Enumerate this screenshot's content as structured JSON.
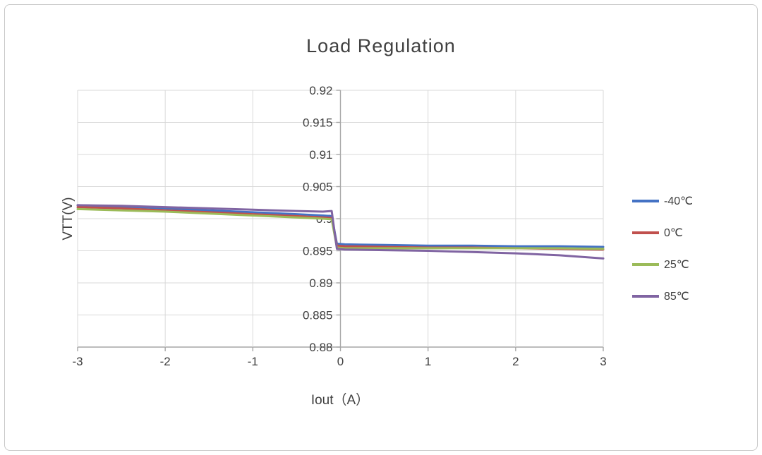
{
  "chart_data": {
    "type": "line",
    "title": "Load Regulation",
    "xlabel": "Iout（A）",
    "ylabel": "VTT(V)",
    "xlim": [
      -3,
      3
    ],
    "ylim": [
      0.88,
      0.92
    ],
    "xtick_values": [
      -3,
      -2,
      -1,
      0,
      1,
      2,
      3
    ],
    "xtick_labels": [
      "-3",
      "-2",
      "-1",
      "0",
      "1",
      "2",
      "3"
    ],
    "ytick_values": [
      0.92,
      0.915,
      0.91,
      0.905,
      0.9,
      0.895,
      0.89,
      0.885,
      0.88
    ],
    "ytick_labels": [
      "0.92",
      "0.915",
      "0.91",
      "0.905",
      "0.9",
      "0.895",
      "0.89",
      "0.885",
      "0.88"
    ],
    "grid": true,
    "legend_position": "right",
    "colors": {
      "gridline": "#d9d9d9",
      "axis": "#a6a6a6",
      "text": "#404040"
    },
    "series": [
      {
        "name": "-40℃",
        "color": "#4472c4",
        "x": [
          -3,
          -2.5,
          -2,
          -1.5,
          -1,
          -0.5,
          -0.2,
          -0.1,
          -0.04,
          0.05,
          0.5,
          1,
          1.5,
          2,
          2.5,
          3
        ],
        "y": [
          0.9021,
          0.9019,
          0.9016,
          0.9013,
          0.901,
          0.9007,
          0.9005,
          0.9004,
          0.8961,
          0.896,
          0.8959,
          0.8958,
          0.8958,
          0.8957,
          0.8957,
          0.8956
        ]
      },
      {
        "name": "0℃",
        "color": "#c0504d",
        "x": [
          -3,
          -2.5,
          -2,
          -1.5,
          -1,
          -0.5,
          -0.2,
          -0.1,
          -0.04,
          0.05,
          0.5,
          1,
          1.5,
          2,
          2.5,
          3
        ],
        "y": [
          0.9018,
          0.9016,
          0.9013,
          0.901,
          0.9007,
          0.9004,
          0.9002,
          0.9001,
          0.8958,
          0.8957,
          0.8956,
          0.8955,
          0.8955,
          0.8954,
          0.8953,
          0.8952
        ]
      },
      {
        "name": "25℃",
        "color": "#9bbb59",
        "x": [
          -3,
          -2.5,
          -2,
          -1.5,
          -1,
          -0.5,
          -0.2,
          -0.1,
          -0.04,
          0.05,
          0.5,
          1,
          1.5,
          2,
          2.5,
          3
        ],
        "y": [
          0.9015,
          0.9013,
          0.9011,
          0.9008,
          0.9005,
          0.9002,
          0.9,
          0.8999,
          0.8955,
          0.8954,
          0.8954,
          0.8954,
          0.8954,
          0.8954,
          0.8954,
          0.8953
        ]
      },
      {
        "name": "85℃",
        "color": "#8064a2",
        "x": [
          -3,
          -2.5,
          -2,
          -1.5,
          -1,
          -0.5,
          -0.2,
          -0.1,
          -0.04,
          0.05,
          0.5,
          1,
          1.5,
          2,
          2.5,
          3
        ],
        "y": [
          0.9021,
          0.902,
          0.9018,
          0.9016,
          0.9014,
          0.9012,
          0.9011,
          0.9012,
          0.8953,
          0.8952,
          0.8951,
          0.895,
          0.8948,
          0.8946,
          0.8943,
          0.8938
        ]
      }
    ]
  }
}
